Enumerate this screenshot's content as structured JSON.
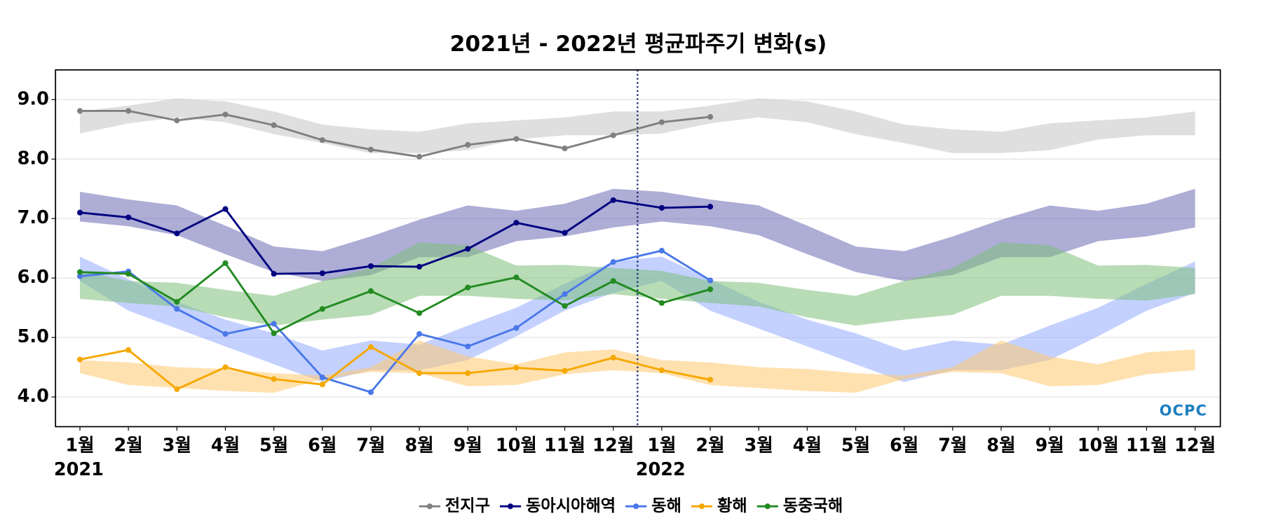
{
  "chart_data": {
    "type": "line",
    "title": "2021년 - 2022년 평균파주기 변화(s)",
    "categories": [
      "1월",
      "2월",
      "3월",
      "4월",
      "5월",
      "6월",
      "7월",
      "8월",
      "9월",
      "10월",
      "11월",
      "12월",
      "1월",
      "2월",
      "3월",
      "4월",
      "5월",
      "6월",
      "7월",
      "8월",
      "9월",
      "10월",
      "11월",
      "12월"
    ],
    "years": [
      "2021",
      "2022"
    ],
    "ylim": [
      3.5,
      9.5
    ],
    "yticks": [
      {
        "value": 4,
        "label": "4.0"
      },
      {
        "value": 5,
        "label": "5.0"
      },
      {
        "value": 6,
        "label": "6.0"
      },
      {
        "value": 7,
        "label": "7.0"
      },
      {
        "value": 8,
        "label": "8.0"
      },
      {
        "value": 9,
        "label": "9.0"
      }
    ],
    "grid": true,
    "legend": "bottom",
    "logo": "OCPC",
    "series": [
      {
        "name": "전지구",
        "color": "#808080",
        "values": [
          8.81,
          8.81,
          8.65,
          8.75,
          8.57,
          8.32,
          8.16,
          8.04,
          8.24,
          8.34,
          8.18,
          8.4,
          8.62,
          8.71,
          null,
          null,
          null,
          null,
          null,
          null,
          null,
          null,
          null,
          null
        ],
        "band_color": "#c4c4c4",
        "band_low": [
          8.43,
          8.6,
          8.7,
          8.62,
          8.42,
          8.27,
          8.1,
          8.1,
          8.15,
          8.33,
          8.4,
          8.4,
          8.43,
          8.6,
          8.7,
          8.62,
          8.42,
          8.27,
          8.1,
          8.1,
          8.15,
          8.33,
          8.4,
          8.4
        ],
        "band_high": [
          8.8,
          8.9,
          9.02,
          8.97,
          8.8,
          8.58,
          8.5,
          8.46,
          8.6,
          8.65,
          8.7,
          8.8,
          8.8,
          8.9,
          9.02,
          8.97,
          8.8,
          8.58,
          8.5,
          8.46,
          8.6,
          8.65,
          8.7,
          8.8
        ]
      },
      {
        "name": "동아시아해역",
        "color": "#000080",
        "values": [
          7.1,
          7.02,
          6.75,
          7.16,
          6.07,
          6.08,
          6.2,
          6.19,
          6.49,
          6.93,
          6.76,
          7.31,
          7.18,
          7.2,
          null,
          null,
          null,
          null,
          null,
          null,
          null,
          null,
          null,
          null
        ],
        "band_color": "#6a6ab4",
        "band_low": [
          6.95,
          6.87,
          6.72,
          6.4,
          6.1,
          5.95,
          6.05,
          6.35,
          6.35,
          6.62,
          6.7,
          6.85,
          6.95,
          6.87,
          6.72,
          6.4,
          6.1,
          5.95,
          6.05,
          6.35,
          6.35,
          6.62,
          6.7,
          6.85
        ],
        "band_high": [
          7.45,
          7.32,
          7.22,
          6.88,
          6.53,
          6.45,
          6.7,
          6.98,
          7.22,
          7.13,
          7.25,
          7.5,
          7.45,
          7.32,
          7.22,
          6.88,
          6.53,
          6.45,
          6.7,
          6.98,
          7.22,
          7.13,
          7.25,
          7.5
        ]
      },
      {
        "name": "동해",
        "color": "#4a78e8",
        "values": [
          6.03,
          6.11,
          5.48,
          5.06,
          5.23,
          4.33,
          4.08,
          5.06,
          4.85,
          5.16,
          5.73,
          6.27,
          6.46,
          5.96,
          null,
          null,
          null,
          null,
          null,
          null,
          null,
          null,
          null,
          null
        ],
        "band_color": "#93acff",
        "band_low": [
          5.95,
          5.45,
          5.15,
          4.85,
          4.55,
          4.25,
          4.45,
          4.45,
          4.62,
          5.02,
          5.45,
          5.75,
          5.95,
          5.45,
          5.15,
          4.85,
          4.55,
          4.25,
          4.45,
          4.45,
          4.62,
          5.02,
          5.45,
          5.75
        ],
        "band_high": [
          6.36,
          5.98,
          5.6,
          5.3,
          5.07,
          4.78,
          4.95,
          4.88,
          5.2,
          5.5,
          5.9,
          6.28,
          6.36,
          5.98,
          5.6,
          5.3,
          5.07,
          4.78,
          4.95,
          4.88,
          5.2,
          5.5,
          5.9,
          6.28
        ]
      },
      {
        "name": "황해",
        "color": "#f5a800",
        "values": [
          4.63,
          4.79,
          4.13,
          4.5,
          4.3,
          4.21,
          4.84,
          4.4,
          4.4,
          4.49,
          4.44,
          4.66,
          4.45,
          4.29,
          null,
          null,
          null,
          null,
          null,
          null,
          null,
          null,
          null,
          null
        ],
        "band_color": "#ffc870",
        "band_low": [
          4.4,
          4.2,
          4.15,
          4.1,
          4.07,
          4.3,
          4.42,
          4.4,
          4.18,
          4.2,
          4.38,
          4.45,
          4.4,
          4.2,
          4.15,
          4.1,
          4.07,
          4.3,
          4.42,
          4.4,
          4.18,
          4.2,
          4.38,
          4.45
        ],
        "band_high": [
          4.62,
          4.58,
          4.5,
          4.47,
          4.4,
          4.36,
          4.5,
          4.95,
          4.68,
          4.55,
          4.75,
          4.8,
          4.62,
          4.58,
          4.5,
          4.47,
          4.4,
          4.36,
          4.5,
          4.95,
          4.68,
          4.55,
          4.75,
          4.8
        ]
      },
      {
        "name": "동중국해",
        "color": "#228b22",
        "values": [
          6.1,
          6.07,
          5.6,
          6.25,
          5.07,
          5.48,
          5.78,
          5.41,
          5.84,
          6.01,
          5.53,
          5.95,
          5.58,
          5.81,
          null,
          null,
          null,
          null,
          null,
          null,
          null,
          null,
          null,
          null
        ],
        "band_color": "#7ec07a",
        "band_low": [
          5.65,
          5.58,
          5.52,
          5.34,
          5.2,
          5.3,
          5.38,
          5.7,
          5.7,
          5.65,
          5.62,
          5.73,
          5.65,
          5.58,
          5.52,
          5.34,
          5.2,
          5.3,
          5.38,
          5.7,
          5.7,
          5.65,
          5.62,
          5.73
        ],
        "band_high": [
          6.12,
          5.95,
          5.92,
          5.8,
          5.7,
          5.95,
          6.17,
          6.6,
          6.55,
          6.21,
          6.22,
          6.17,
          6.12,
          5.95,
          5.92,
          5.8,
          5.7,
          5.95,
          6.17,
          6.6,
          6.55,
          6.21,
          6.22,
          6.17
        ]
      }
    ]
  }
}
